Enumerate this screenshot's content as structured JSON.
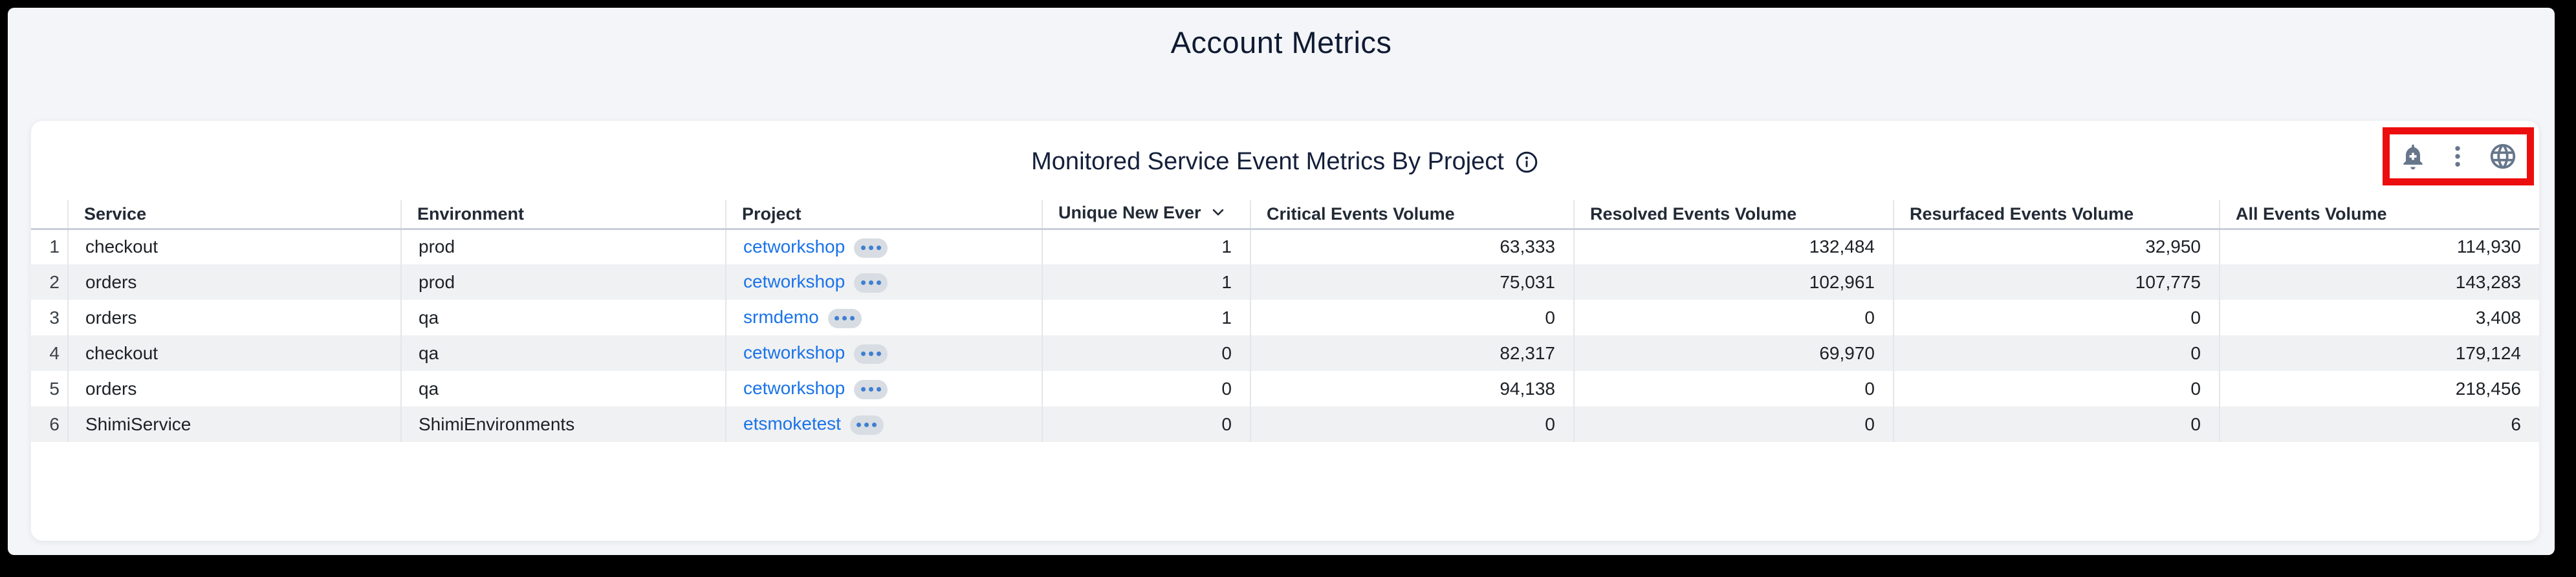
{
  "page": {
    "title": "Account Metrics"
  },
  "widget": {
    "title": "Monitored Service Event Metrics By Project",
    "toolbar": {
      "highlight_color": "#ec0e0e",
      "icons": [
        {
          "name": "add-alert"
        },
        {
          "name": "more-options"
        },
        {
          "name": "globe"
        }
      ]
    },
    "table": {
      "columns": [
        {
          "key": "idx",
          "label": "",
          "numeric": false
        },
        {
          "key": "service",
          "label": "Service",
          "numeric": false
        },
        {
          "key": "environment",
          "label": "Environment",
          "numeric": false
        },
        {
          "key": "project",
          "label": "Project",
          "numeric": false,
          "link": true
        },
        {
          "key": "unique_new",
          "label": "Unique New Ever",
          "numeric": true,
          "sorted": "desc"
        },
        {
          "key": "critical",
          "label": "Critical Events Volume",
          "numeric": true
        },
        {
          "key": "resolved",
          "label": "Resolved Events Volume",
          "numeric": true
        },
        {
          "key": "resurfaced",
          "label": "Resurfaced Events Volume",
          "numeric": true
        },
        {
          "key": "all",
          "label": "All Events Volume",
          "numeric": true
        }
      ],
      "rows": [
        {
          "idx": "1",
          "service": "checkout",
          "environment": "prod",
          "project": "cetworkshop",
          "unique_new": "1",
          "critical": "63,333",
          "resolved": "132,484",
          "resurfaced": "32,950",
          "all": "114,930"
        },
        {
          "idx": "2",
          "service": "orders",
          "environment": "prod",
          "project": "cetworkshop",
          "unique_new": "1",
          "critical": "75,031",
          "resolved": "102,961",
          "resurfaced": "107,775",
          "all": "143,283"
        },
        {
          "idx": "3",
          "service": "orders",
          "environment": "qa",
          "project": "srmdemo",
          "unique_new": "1",
          "critical": "0",
          "resolved": "0",
          "resurfaced": "0",
          "all": "3,408"
        },
        {
          "idx": "4",
          "service": "checkout",
          "environment": "qa",
          "project": "cetworkshop",
          "unique_new": "0",
          "critical": "82,317",
          "resolved": "69,970",
          "resurfaced": "0",
          "all": "179,124"
        },
        {
          "idx": "5",
          "service": "orders",
          "environment": "qa",
          "project": "cetworkshop",
          "unique_new": "0",
          "critical": "94,138",
          "resolved": "0",
          "resurfaced": "0",
          "all": "218,456"
        },
        {
          "idx": "6",
          "service": "ShimiService",
          "environment": "ShimiEnvironments",
          "project": "etsmoketest",
          "unique_new": "0",
          "critical": "0",
          "resolved": "0",
          "resurfaced": "0",
          "all": "6"
        }
      ]
    }
  },
  "colors": {
    "link_blue": "#1a73e8",
    "highlight_red": "#ec0e0e",
    "icon_gray": "#67768b",
    "zebra_row": "#f0f1f3",
    "page_background": "#f4f5f8",
    "title_text": "#0f1b33"
  }
}
